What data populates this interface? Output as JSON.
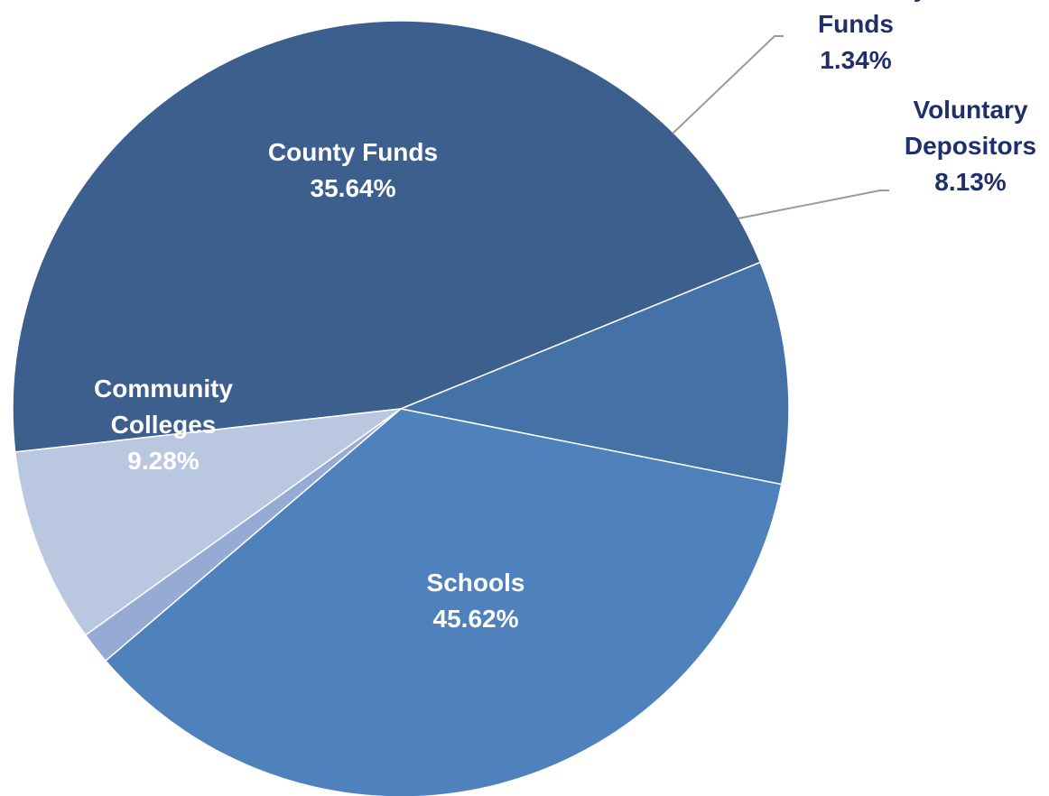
{
  "chart_data": {
    "type": "pie",
    "slices": [
      {
        "name": "Schools",
        "label_lines": [
          "Schools"
        ],
        "value": 45.62,
        "value_label": "45.62%",
        "color": "#3d5f8d"
      },
      {
        "name": "Community Colleges",
        "label_lines": [
          "Community",
          "Colleges"
        ],
        "value": 9.28,
        "value_label": "9.28%",
        "color": "#4472a7"
      },
      {
        "name": "County Funds",
        "label_lines": [
          "County Funds"
        ],
        "value": 35.64,
        "value_label": "35.64%",
        "color": "#4f81bd"
      },
      {
        "name": "Non County Funds",
        "label_lines": [
          "Non County",
          "Funds"
        ],
        "value": 1.34,
        "value_label": "1.34%",
        "color": "#95abd3"
      },
      {
        "name": "Voluntary Depositors",
        "label_lines": [
          "Voluntary",
          "Depositors"
        ],
        "value": 8.13,
        "value_label": "8.13%",
        "color": "#b9c7e0"
      }
    ],
    "colors": {
      "label_inside": "#ffffff",
      "label_outside": "#1f2f6b",
      "leader_line": "#9a9a9a"
    },
    "legend": "none"
  }
}
